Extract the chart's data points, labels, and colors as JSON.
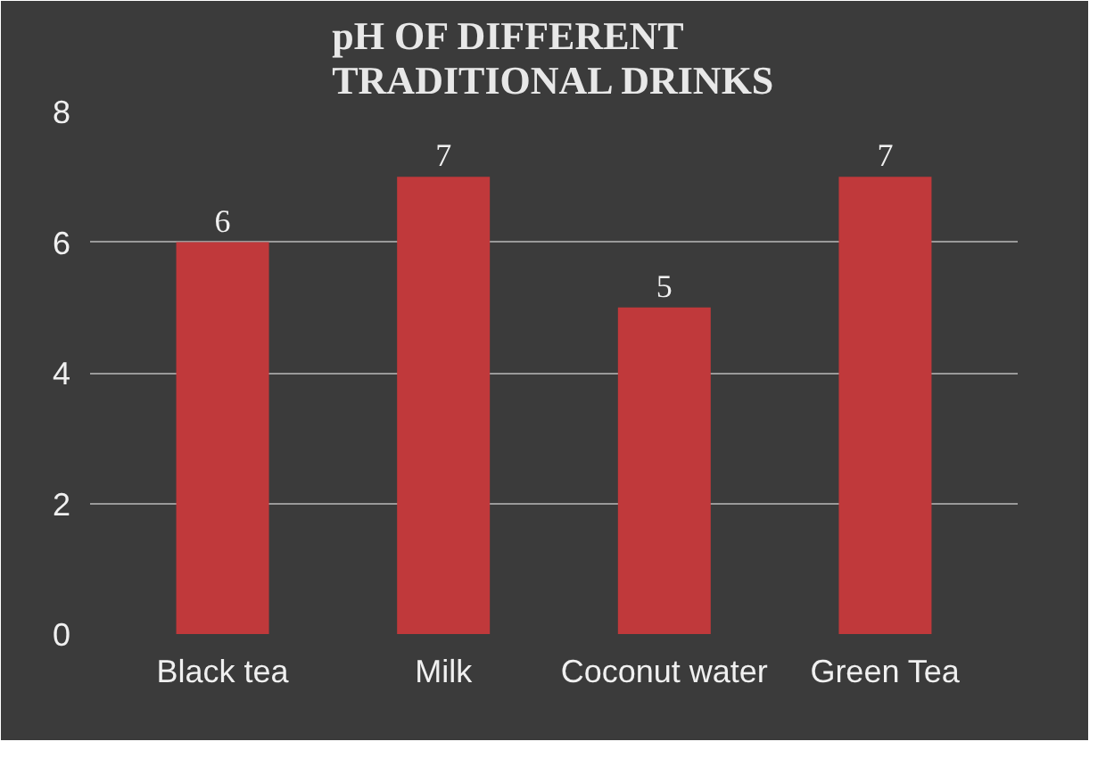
{
  "chart_data": {
    "type": "bar",
    "title": "pH OF DIFFERENT\nTRADITIONAL DRINKS",
    "categories": [
      "Black tea",
      "Milk",
      "Coconut water",
      "Green Tea"
    ],
    "values": [
      6,
      7,
      5,
      7
    ],
    "color": "#c0393b",
    "ylim": [
      0,
      8
    ],
    "yticks": [
      0,
      2,
      4,
      6,
      8
    ],
    "grid": "y",
    "data_labels": true
  }
}
